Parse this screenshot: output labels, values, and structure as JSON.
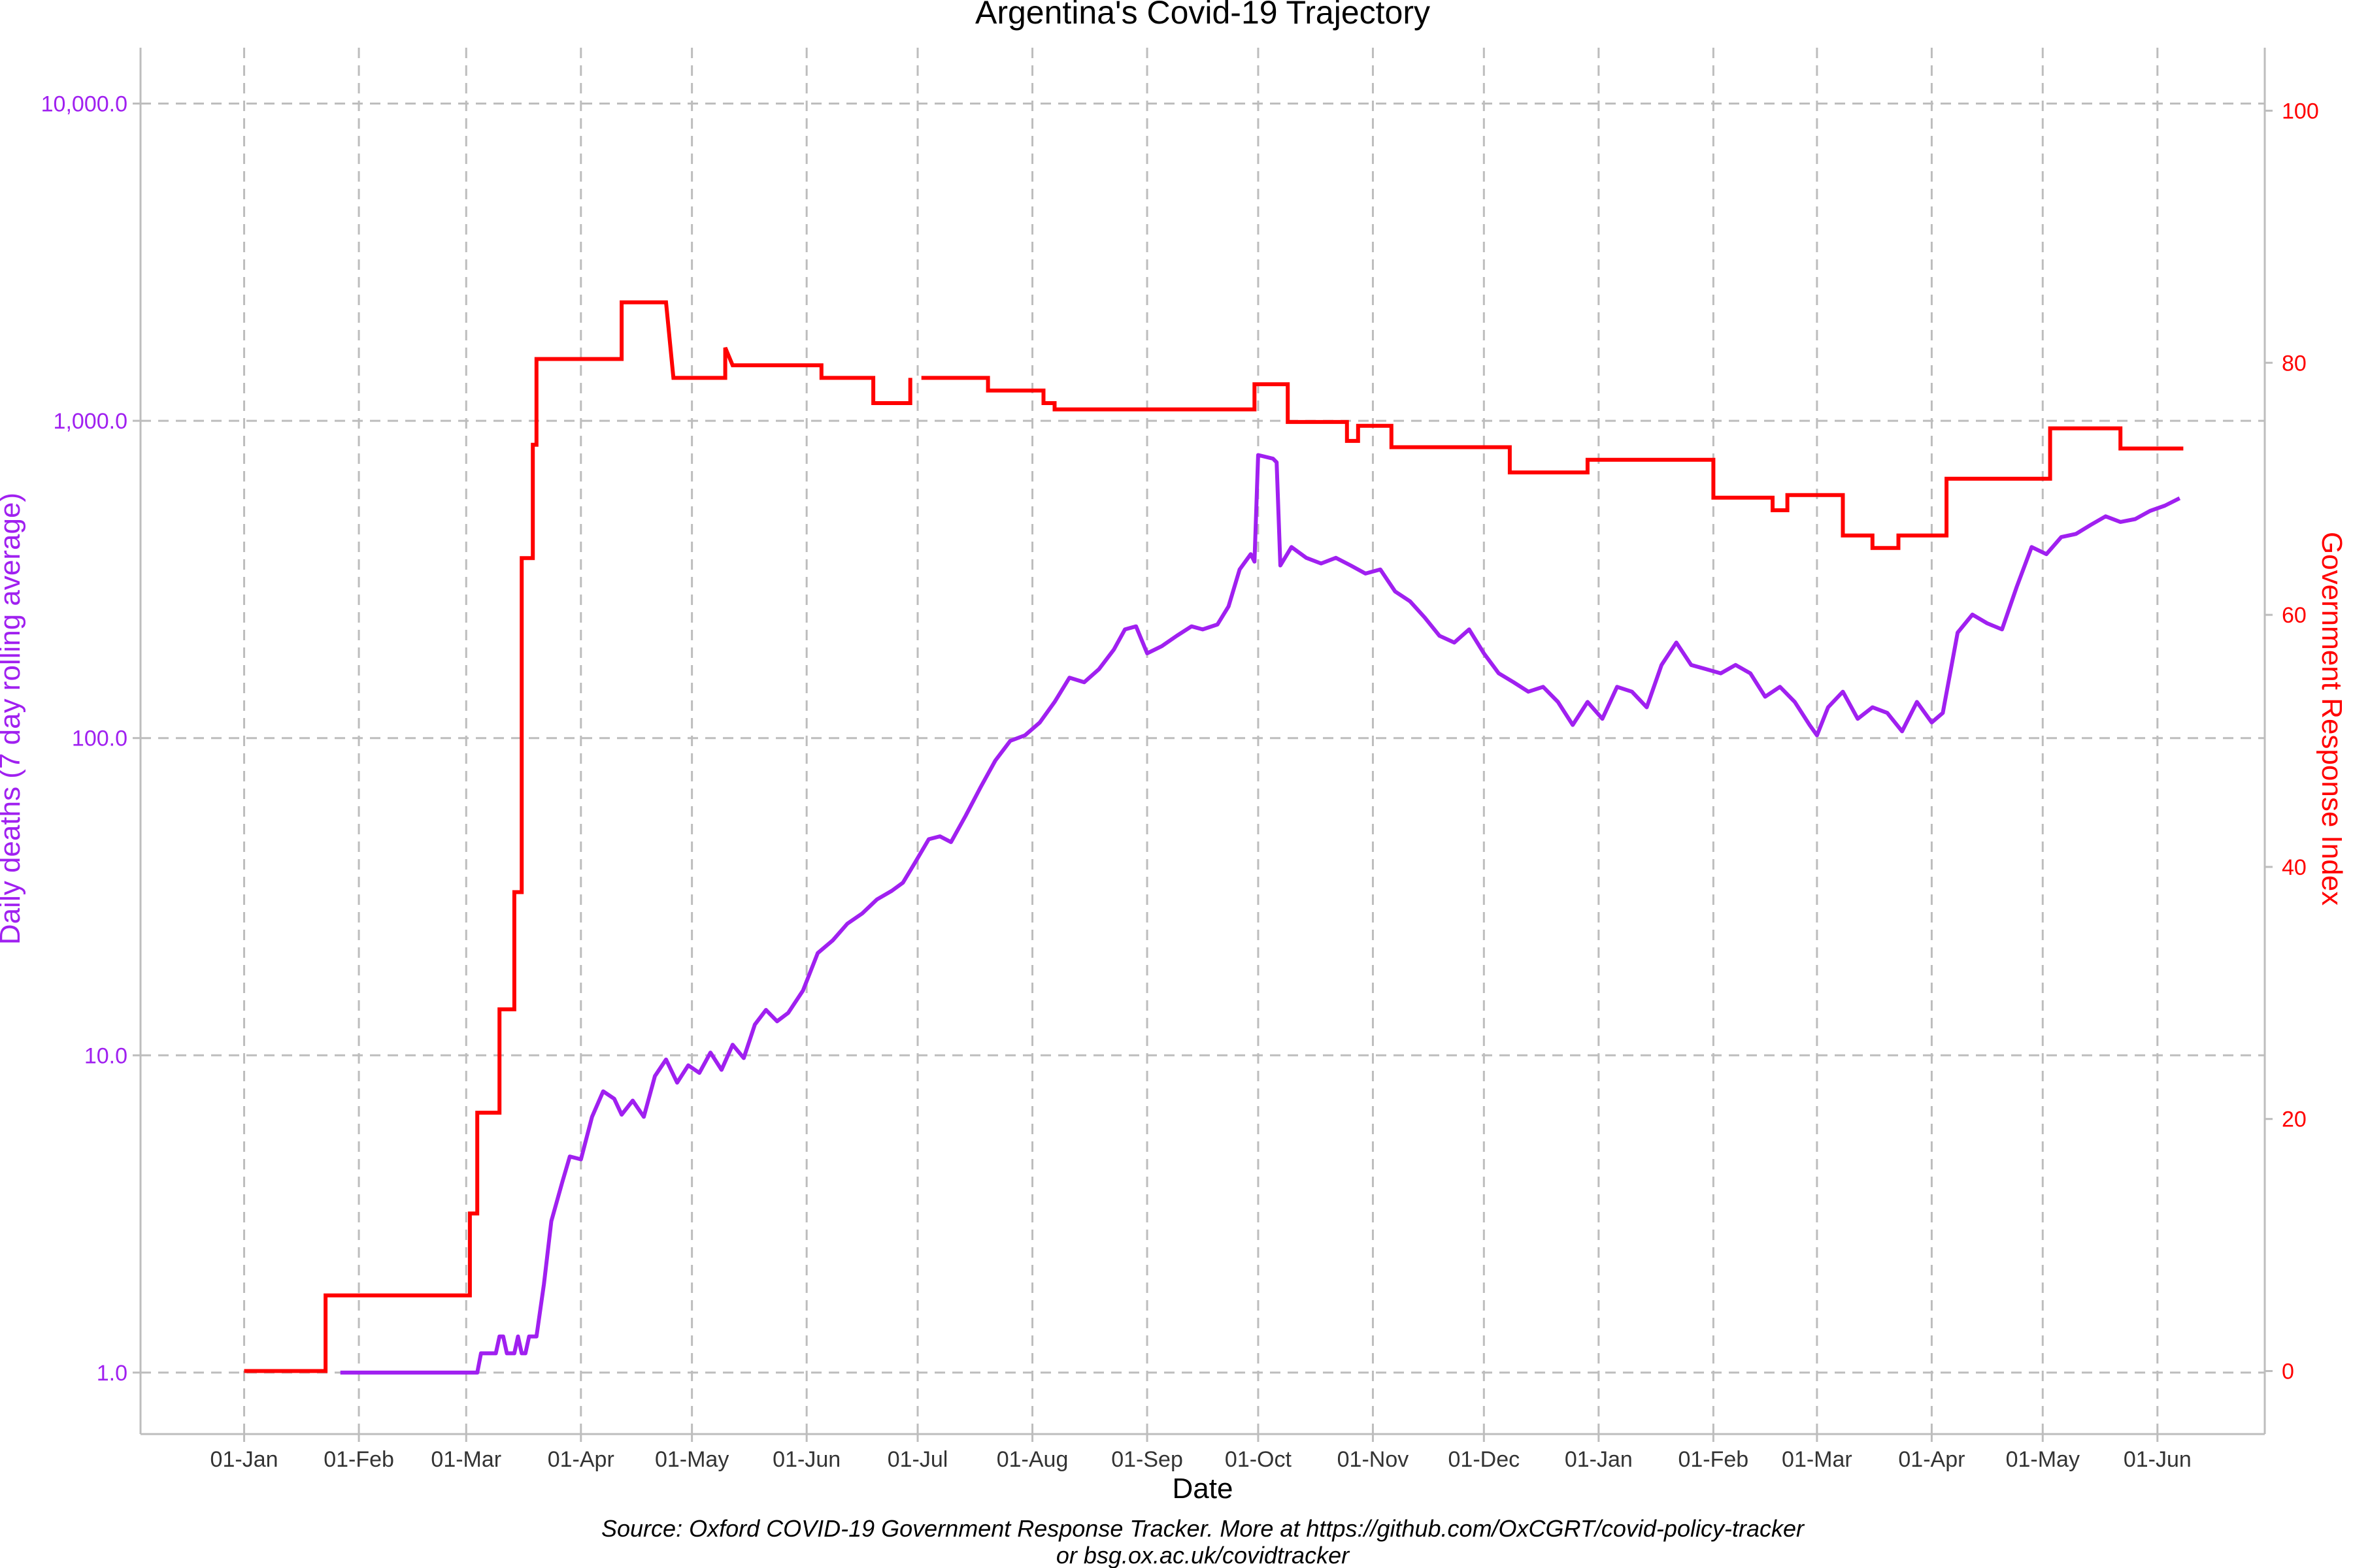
{
  "chart_data": {
    "type": "line",
    "title": "Argentina's Covid-19 Trajectory",
    "xlabel": "Date",
    "ylabel_left": "Daily deaths (7 day rolling average)",
    "ylabel_right": "Government Response Index",
    "caption_line1": "Source: Oxford COVID-19 Government Response Tracker. More at https://github.com/OxCGRT/covid-policy-tracker",
    "caption_line2": "or bsg.ox.ac.uk/covidtracker",
    "grid": true,
    "colors": {
      "deaths": "#a020f0",
      "index": "#ff0000",
      "grid": "#bdbdbd",
      "axis": "#bdbdbd"
    },
    "x_ticks": [
      {
        "date": "2020-01-01",
        "label": "01-Jan"
      },
      {
        "date": "2020-02-01",
        "label": "01-Feb"
      },
      {
        "date": "2020-03-01",
        "label": "01-Mar"
      },
      {
        "date": "2020-04-01",
        "label": "01-Apr"
      },
      {
        "date": "2020-05-01",
        "label": "01-May"
      },
      {
        "date": "2020-06-01",
        "label": "01-Jun"
      },
      {
        "date": "2020-07-01",
        "label": "01-Jul"
      },
      {
        "date": "2020-08-01",
        "label": "01-Aug"
      },
      {
        "date": "2020-09-01",
        "label": "01-Sep"
      },
      {
        "date": "2020-10-01",
        "label": "01-Oct"
      },
      {
        "date": "2020-11-01",
        "label": "01-Nov"
      },
      {
        "date": "2020-12-01",
        "label": "01-Dec"
      },
      {
        "date": "2021-01-01",
        "label": "01-Jan"
      },
      {
        "date": "2021-02-01",
        "label": "01-Feb"
      },
      {
        "date": "2021-03-01",
        "label": "01-Mar"
      },
      {
        "date": "2021-04-01",
        "label": "01-Apr"
      },
      {
        "date": "2021-05-01",
        "label": "01-May"
      },
      {
        "date": "2021-06-01",
        "label": "01-Jun"
      }
    ],
    "x_range": [
      "2019-12-04",
      "2021-06-30"
    ],
    "y_left": {
      "scale": "log10",
      "range": [
        0.64,
        15000
      ],
      "ticks": [
        {
          "value": 1,
          "label": "1.0"
        },
        {
          "value": 10,
          "label": "10.0"
        },
        {
          "value": 100,
          "label": "100.0"
        },
        {
          "value": 1000,
          "label": "1,000.0"
        },
        {
          "value": 10000,
          "label": "10,000.0"
        }
      ]
    },
    "y_right": {
      "scale": "linear",
      "range": [
        -5,
        105
      ],
      "ticks": [
        {
          "value": 0,
          "label": "0"
        },
        {
          "value": 20,
          "label": "20"
        },
        {
          "value": 40,
          "label": "40"
        },
        {
          "value": 60,
          "label": "60"
        },
        {
          "value": 80,
          "label": "80"
        },
        {
          "value": 100,
          "label": "100"
        }
      ]
    },
    "series": [
      {
        "key": "deaths",
        "axis": "left",
        "points": [
          [
            "2020-01-27",
            1
          ],
          [
            "2020-03-04",
            1
          ],
          [
            "2020-03-05",
            1.15
          ],
          [
            "2020-03-09",
            1.15
          ],
          [
            "2020-03-10",
            1.3
          ],
          [
            "2020-03-11",
            1.3
          ],
          [
            "2020-03-12",
            1.15
          ],
          [
            "2020-03-14",
            1.15
          ],
          [
            "2020-03-15",
            1.3
          ],
          [
            "2020-03-16",
            1.15
          ],
          [
            "2020-03-17",
            1.15
          ],
          [
            "2020-03-18",
            1.3
          ],
          [
            "2020-03-20",
            1.3
          ],
          [
            "2020-03-22",
            1.9
          ],
          [
            "2020-03-24",
            3
          ],
          [
            "2020-03-27",
            4
          ],
          [
            "2020-03-29",
            4.8
          ],
          [
            "2020-04-01",
            4.7
          ],
          [
            "2020-04-04",
            6.4
          ],
          [
            "2020-04-07",
            7.7
          ],
          [
            "2020-04-10",
            7.3
          ],
          [
            "2020-04-12",
            6.5
          ],
          [
            "2020-04-15",
            7.2
          ],
          [
            "2020-04-18",
            6.4
          ],
          [
            "2020-04-21",
            8.6
          ],
          [
            "2020-04-24",
            9.7
          ],
          [
            "2020-04-27",
            8.2
          ],
          [
            "2020-04-30",
            9.3
          ],
          [
            "2020-05-03",
            8.8
          ],
          [
            "2020-05-06",
            10.2
          ],
          [
            "2020-05-09",
            9
          ],
          [
            "2020-05-12",
            10.8
          ],
          [
            "2020-05-15",
            9.8
          ],
          [
            "2020-05-18",
            12.5
          ],
          [
            "2020-05-21",
            13.9
          ],
          [
            "2020-05-24",
            12.8
          ],
          [
            "2020-05-27",
            13.6
          ],
          [
            "2020-05-31",
            16
          ],
          [
            "2020-06-04",
            21
          ],
          [
            "2020-06-08",
            23
          ],
          [
            "2020-06-12",
            26
          ],
          [
            "2020-06-16",
            28
          ],
          [
            "2020-06-20",
            31
          ],
          [
            "2020-06-24",
            33
          ],
          [
            "2020-06-27",
            35
          ],
          [
            "2020-06-30",
            40
          ],
          [
            "2020-07-04",
            48
          ],
          [
            "2020-07-07",
            49
          ],
          [
            "2020-07-10",
            47
          ],
          [
            "2020-07-14",
            57
          ],
          [
            "2020-07-18",
            70
          ],
          [
            "2020-07-22",
            85
          ],
          [
            "2020-07-26",
            98
          ],
          [
            "2020-07-30",
            102
          ],
          [
            "2020-08-03",
            112
          ],
          [
            "2020-08-07",
            130
          ],
          [
            "2020-08-11",
            155
          ],
          [
            "2020-08-15",
            150
          ],
          [
            "2020-08-19",
            165
          ],
          [
            "2020-08-23",
            190
          ],
          [
            "2020-08-26",
            220
          ],
          [
            "2020-08-29",
            225
          ],
          [
            "2020-09-01",
            185
          ],
          [
            "2020-09-05",
            195
          ],
          [
            "2020-09-09",
            210
          ],
          [
            "2020-09-13",
            225
          ],
          [
            "2020-09-16",
            220
          ],
          [
            "2020-09-20",
            228
          ],
          [
            "2020-09-23",
            260
          ],
          [
            "2020-09-26",
            340
          ],
          [
            "2020-09-29",
            380
          ],
          [
            "2020-09-30",
            360
          ],
          [
            "2020-10-01",
            780
          ],
          [
            "2020-10-05",
            760
          ],
          [
            "2020-10-06",
            740
          ],
          [
            "2020-10-07",
            350
          ],
          [
            "2020-10-10",
            400
          ],
          [
            "2020-10-14",
            370
          ],
          [
            "2020-10-18",
            355
          ],
          [
            "2020-10-22",
            370
          ],
          [
            "2020-10-26",
            350
          ],
          [
            "2020-10-30",
            330
          ],
          [
            "2020-11-03",
            340
          ],
          [
            "2020-11-07",
            290
          ],
          [
            "2020-11-11",
            270
          ],
          [
            "2020-11-15",
            240
          ],
          [
            "2020-11-19",
            210
          ],
          [
            "2020-11-23",
            200
          ],
          [
            "2020-11-27",
            220
          ],
          [
            "2020-12-01",
            185
          ],
          [
            "2020-12-05",
            160
          ],
          [
            "2020-12-09",
            150
          ],
          [
            "2020-12-13",
            140
          ],
          [
            "2020-12-17",
            145
          ],
          [
            "2020-12-21",
            130
          ],
          [
            "2020-12-25",
            110
          ],
          [
            "2020-12-29",
            130
          ],
          [
            "2021-01-02",
            115
          ],
          [
            "2021-01-06",
            145
          ],
          [
            "2021-01-10",
            140
          ],
          [
            "2021-01-14",
            125
          ],
          [
            "2021-01-18",
            170
          ],
          [
            "2021-01-22",
            200
          ],
          [
            "2021-01-26",
            170
          ],
          [
            "2021-01-30",
            165
          ],
          [
            "2021-02-03",
            160
          ],
          [
            "2021-02-07",
            170
          ],
          [
            "2021-02-11",
            160
          ],
          [
            "2021-02-15",
            135
          ],
          [
            "2021-02-19",
            145
          ],
          [
            "2021-02-23",
            130
          ],
          [
            "2021-02-27",
            110
          ],
          [
            "2021-03-01",
            102
          ],
          [
            "2021-03-04",
            125
          ],
          [
            "2021-03-08",
            140
          ],
          [
            "2021-03-12",
            115
          ],
          [
            "2021-03-16",
            125
          ],
          [
            "2021-03-20",
            120
          ],
          [
            "2021-03-24",
            105
          ],
          [
            "2021-03-28",
            130
          ],
          [
            "2021-04-01",
            112
          ],
          [
            "2021-04-04",
            120
          ],
          [
            "2021-04-08",
            215
          ],
          [
            "2021-04-12",
            245
          ],
          [
            "2021-04-16",
            230
          ],
          [
            "2021-04-20",
            220
          ],
          [
            "2021-04-24",
            300
          ],
          [
            "2021-04-28",
            400
          ],
          [
            "2021-05-02",
            380
          ],
          [
            "2021-05-06",
            430
          ],
          [
            "2021-05-10",
            440
          ],
          [
            "2021-05-14",
            470
          ],
          [
            "2021-05-18",
            500
          ],
          [
            "2021-05-22",
            480
          ],
          [
            "2021-05-26",
            490
          ],
          [
            "2021-05-30",
            520
          ],
          [
            "2021-06-03",
            540
          ],
          [
            "2021-06-07",
            570
          ]
        ]
      },
      {
        "key": "index",
        "axis": "right",
        "segments": [
          [
            [
              "2020-01-01",
              0
            ],
            [
              "2020-01-23",
              0
            ],
            [
              "2020-01-23",
              6
            ],
            [
              "2020-03-02",
              6
            ],
            [
              "2020-03-02",
              12.5
            ],
            [
              "2020-03-04",
              12.5
            ],
            [
              "2020-03-04",
              20.5
            ],
            [
              "2020-03-10",
              20.5
            ],
            [
              "2020-03-10",
              28.7
            ],
            [
              "2020-03-14",
              28.7
            ],
            [
              "2020-03-14",
              38
            ],
            [
              "2020-03-16",
              38
            ],
            [
              "2020-03-16",
              64.5
            ],
            [
              "2020-03-19",
              64.5
            ],
            [
              "2020-03-19",
              73.5
            ],
            [
              "2020-03-20",
              73.5
            ],
            [
              "2020-03-20",
              80.3
            ],
            [
              "2020-04-12",
              80.3
            ],
            [
              "2020-04-12",
              84.8
            ],
            [
              "2020-04-24",
              84.8
            ],
            [
              "2020-04-26",
              78.8
            ],
            [
              "2020-05-10",
              78.8
            ],
            [
              "2020-05-10",
              81.2
            ],
            [
              "2020-05-12",
              79.8
            ],
            [
              "2020-06-05",
              79.8
            ],
            [
              "2020-06-05",
              78.8
            ],
            [
              "2020-06-19",
              78.8
            ],
            [
              "2020-06-19",
              76.8
            ],
            [
              "2020-06-29",
              76.8
            ],
            [
              "2020-06-29",
              78.8
            ]
          ],
          [
            [
              "2020-07-02",
              78.8
            ],
            [
              "2020-07-20",
              78.8
            ],
            [
              "2020-07-20",
              77.8
            ],
            [
              "2020-08-04",
              77.8
            ],
            [
              "2020-08-04",
              76.8
            ],
            [
              "2020-08-07",
              76.8
            ],
            [
              "2020-08-07",
              76.3
            ],
            [
              "2020-09-30",
              76.3
            ],
            [
              "2020-09-30",
              78.3
            ],
            [
              "2020-10-09",
              78.3
            ],
            [
              "2020-10-09",
              75.3
            ],
            [
              "2020-10-25",
              75.3
            ],
            [
              "2020-10-25",
              73.8
            ],
            [
              "2020-10-28",
              73.8
            ],
            [
              "2020-10-28",
              75
            ],
            [
              "2020-11-06",
              75
            ],
            [
              "2020-11-06",
              73.3
            ],
            [
              "2020-12-08",
              73.3
            ],
            [
              "2020-12-08",
              71.3
            ],
            [
              "2020-12-29",
              71.3
            ],
            [
              "2020-12-29",
              72.3
            ],
            [
              "2021-02-01",
              72.3
            ],
            [
              "2021-02-01",
              69.3
            ],
            [
              "2021-02-17",
              69.3
            ],
            [
              "2021-02-17",
              68.3
            ],
            [
              "2021-02-21",
              68.3
            ],
            [
              "2021-02-21",
              69.5
            ],
            [
              "2021-03-08",
              69.5
            ],
            [
              "2021-03-08",
              66.3
            ],
            [
              "2021-03-16",
              66.3
            ],
            [
              "2021-03-16",
              65.3
            ],
            [
              "2021-03-23",
              65.3
            ],
            [
              "2021-03-23",
              66.3
            ],
            [
              "2021-04-05",
              66.3
            ],
            [
              "2021-04-05",
              70.8
            ],
            [
              "2021-05-03",
              70.8
            ],
            [
              "2021-05-03",
              74.8
            ],
            [
              "2021-05-22",
              74.8
            ],
            [
              "2021-05-22",
              73.2
            ],
            [
              "2021-06-08",
              73.2
            ]
          ]
        ]
      }
    ]
  }
}
